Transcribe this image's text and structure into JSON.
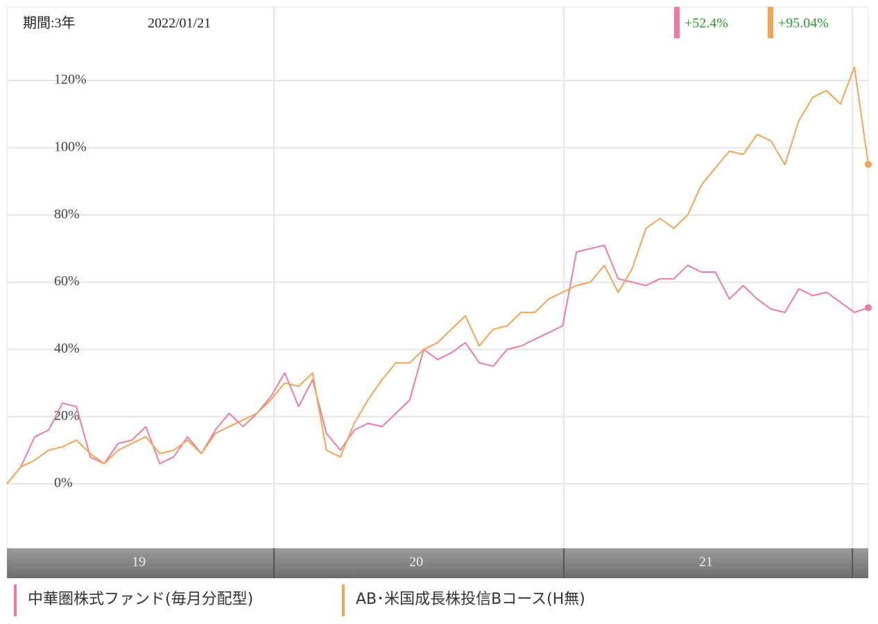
{
  "chart_data": {
    "type": "line",
    "period_label": "期間:3年",
    "date_label": "2022/01/21",
    "xlim": [
      0,
      62
    ],
    "ylim": [
      -19.2,
      141.9
    ],
    "yticks": [
      {
        "value": 0,
        "label": "0%"
      },
      {
        "value": 20,
        "label": "20%"
      },
      {
        "value": 40,
        "label": "40%"
      },
      {
        "value": 60,
        "label": "60%"
      },
      {
        "value": 80,
        "label": "80%"
      },
      {
        "value": 100,
        "label": "100%"
      },
      {
        "value": 120,
        "label": "120%"
      }
    ],
    "xticks": [
      {
        "value": 9.49,
        "label": "19"
      },
      {
        "value": 29.46,
        "label": "20"
      },
      {
        "value": 50.32,
        "label": "21"
      }
    ],
    "year_boundaries": [
      19.22,
      40.09,
      60.86
    ],
    "grid": true,
    "series": [
      {
        "name": "中華圏株式ファンド(毎月分配型)",
        "color": "#f07ba0",
        "last_label": "+52.4%",
        "values": [
          0,
          5,
          14,
          16,
          24,
          23,
          8,
          6,
          12,
          13,
          17,
          6,
          8,
          14,
          9,
          16,
          21,
          17,
          21,
          26,
          33,
          23,
          31,
          15,
          10,
          16,
          18,
          17,
          21,
          25,
          40,
          37,
          39,
          42,
          36,
          35,
          40,
          41,
          43,
          45,
          47,
          69,
          70,
          71,
          61,
          60,
          59,
          61,
          61,
          65,
          63,
          63,
          55,
          59,
          55,
          52,
          51,
          58,
          56,
          57,
          54,
          51,
          52.4
        ]
      },
      {
        "name": "AB･米国成長株投信Bコース(H無)",
        "color": "#f7a354",
        "last_label": "+95.04%",
        "values": [
          0,
          5,
          7,
          10,
          11,
          13,
          9,
          6,
          10,
          12,
          14,
          9,
          10,
          13,
          9,
          15,
          17,
          19,
          21,
          25,
          30,
          29,
          33,
          10,
          8,
          18,
          25,
          31,
          36,
          36,
          40,
          42,
          46,
          50,
          41,
          46,
          47,
          51,
          51,
          55,
          57,
          59,
          60,
          65,
          57,
          64,
          76,
          79,
          76,
          80,
          89,
          94,
          99,
          98,
          104,
          102,
          95,
          108,
          115,
          117,
          113,
          124,
          95.04
        ]
      }
    ]
  }
}
